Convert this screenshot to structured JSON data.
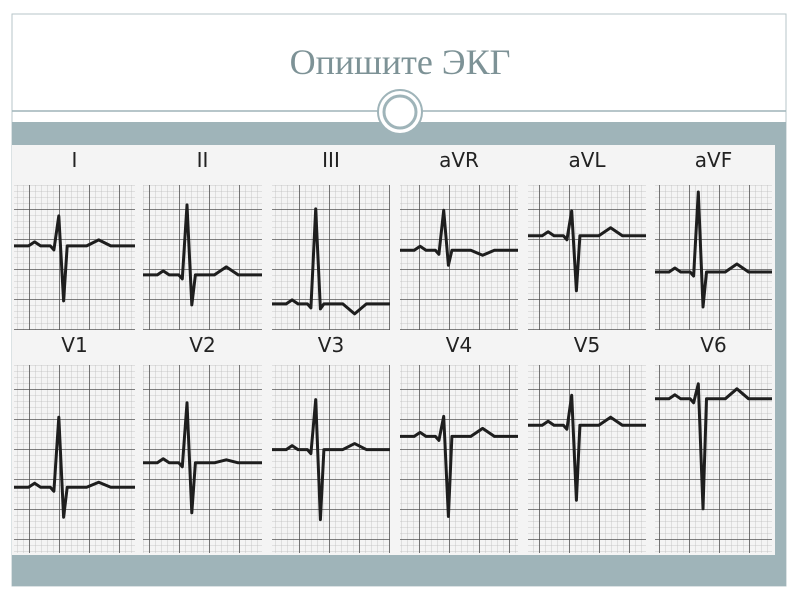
{
  "title": "Опишите ЭКГ",
  "leads": [
    "I",
    "II",
    "III",
    "aVR",
    "aVL",
    "aVF",
    "V1",
    "V2",
    "V3",
    "V4",
    "V5",
    "V6"
  ]
}
